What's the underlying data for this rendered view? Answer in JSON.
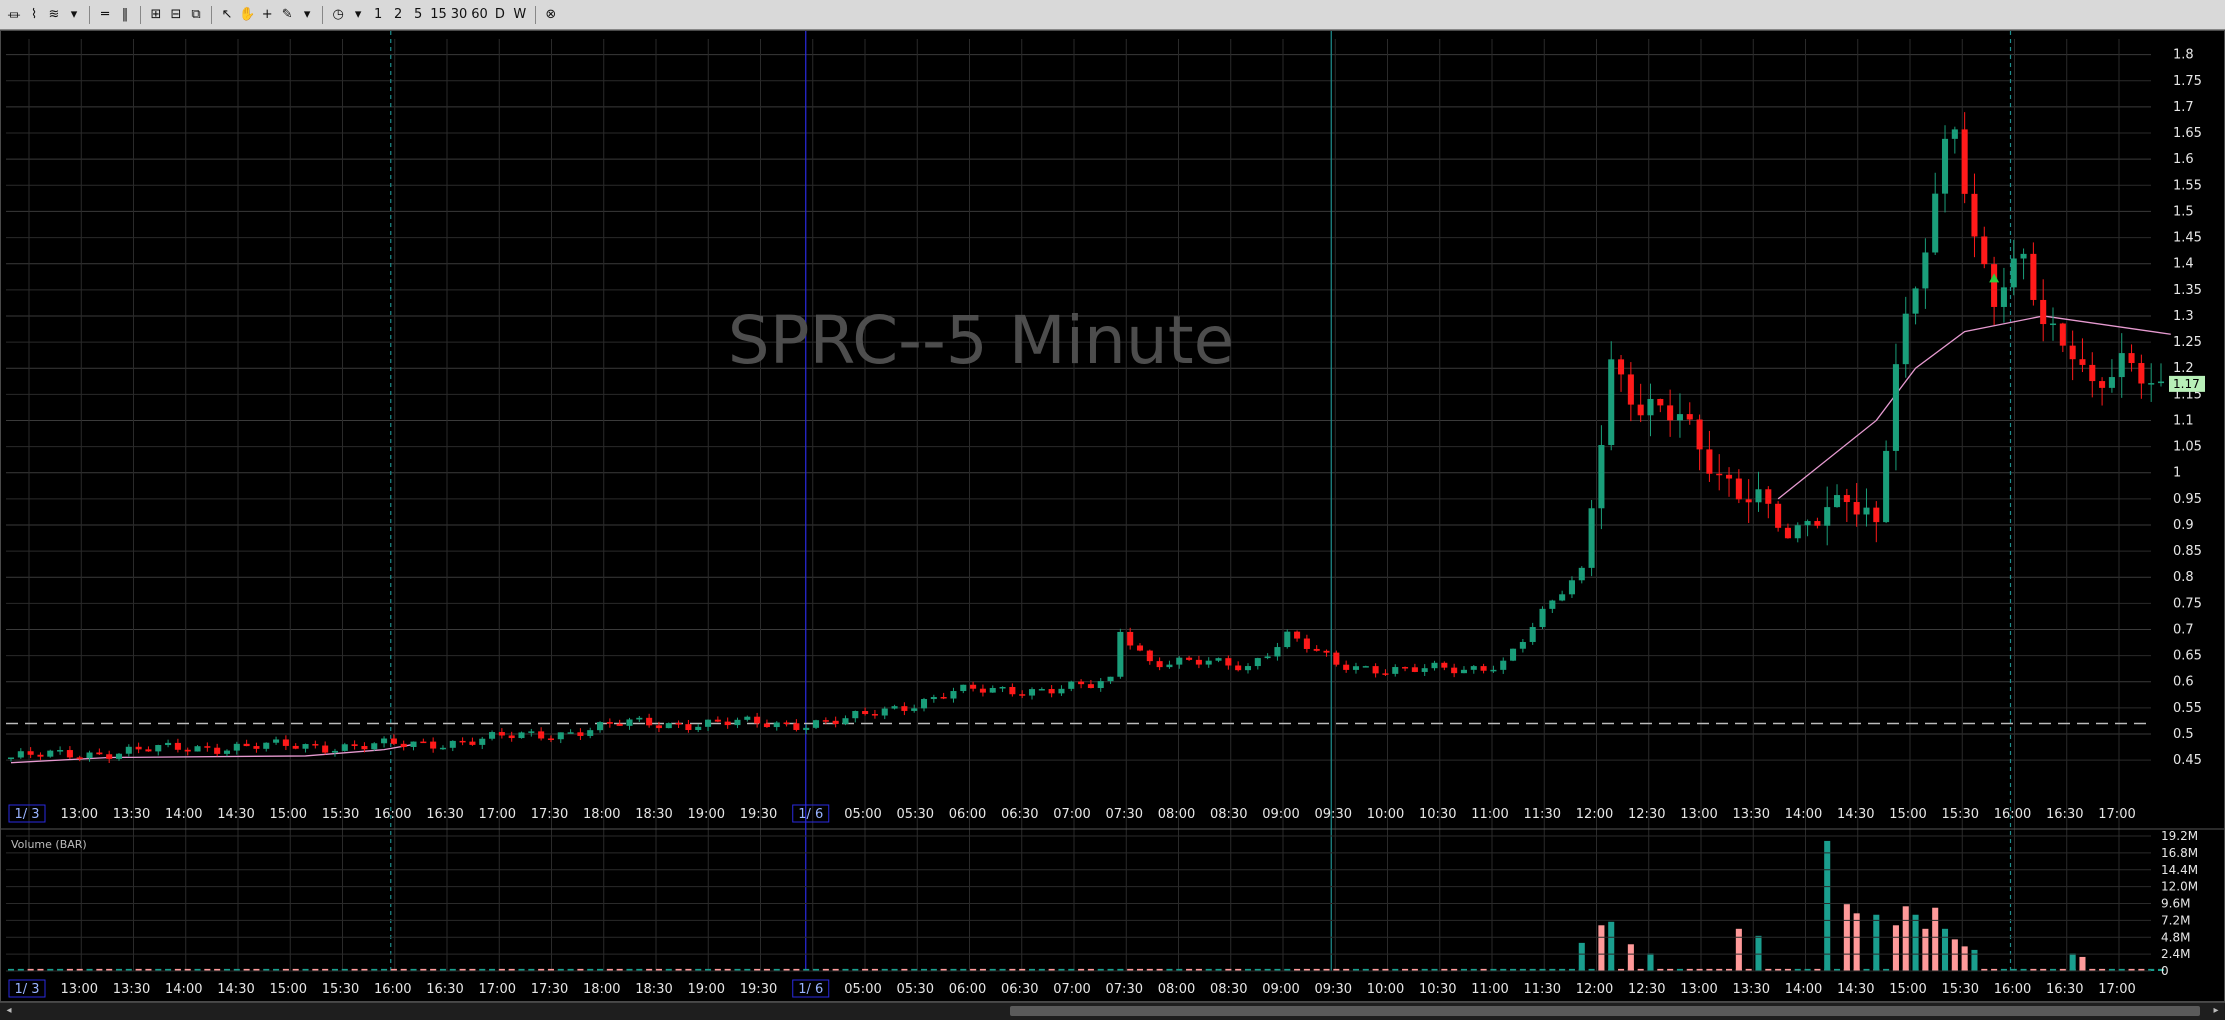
{
  "toolbar": {
    "buttons": [
      {
        "name": "chart-type-icon",
        "glyph": "⏛"
      },
      {
        "name": "draw-tools-icon",
        "glyph": "⌇"
      },
      {
        "name": "indicator-icon",
        "glyph": "≋"
      },
      {
        "name": "dropdown-arrow-icon",
        "glyph": "▾"
      },
      {
        "name": "sep"
      },
      {
        "name": "horizontal-lines-icon",
        "glyph": "═"
      },
      {
        "name": "vertical-lines-icon",
        "glyph": "‖"
      },
      {
        "name": "sep"
      },
      {
        "name": "layout-grid-icon",
        "glyph": "⊞"
      },
      {
        "name": "layout-split-icon",
        "glyph": "⊟"
      },
      {
        "name": "layout-cascade-icon",
        "glyph": "⧉"
      },
      {
        "name": "sep"
      },
      {
        "name": "cursor-icon",
        "glyph": "↖"
      },
      {
        "name": "hand-icon",
        "glyph": "✋"
      },
      {
        "name": "crosshair-icon",
        "glyph": "+"
      },
      {
        "name": "pencil-icon",
        "glyph": "✎"
      },
      {
        "name": "dropdown-arrow-icon",
        "glyph": "▾"
      },
      {
        "name": "sep"
      },
      {
        "name": "clock-icon",
        "glyph": "◷"
      },
      {
        "name": "dropdown-arrow-icon",
        "glyph": "▾"
      },
      {
        "name": "interval-1",
        "glyph": "1"
      },
      {
        "name": "interval-2",
        "glyph": "2"
      },
      {
        "name": "interval-5",
        "glyph": "5"
      },
      {
        "name": "interval-15",
        "glyph": "15"
      },
      {
        "name": "interval-30",
        "glyph": "30"
      },
      {
        "name": "interval-60",
        "glyph": "60"
      },
      {
        "name": "interval-daily",
        "glyph": "D"
      },
      {
        "name": "interval-weekly",
        "glyph": "W"
      },
      {
        "name": "sep"
      },
      {
        "name": "close-circle-icon",
        "glyph": "⊗"
      }
    ]
  },
  "colors": {
    "up": "#1a9e7a",
    "down": "#ff1a1a",
    "vwap": "#e69ad0",
    "grid": "#3a3a3a",
    "grid_minor": "#2a2a2a",
    "session": "#1f8f8f",
    "day_sep": "#2a2ae0",
    "dashed": "#bbbbbb",
    "vol_up": "#1a9e8e",
    "vol_down": "#ff9a9a",
    "last_bg": "#b8f0b8"
  },
  "chart_data": {
    "type": "candlestick",
    "watermark": "SPRC--5 Minute",
    "volume_label": "Volume (BAR)",
    "last_price_label": "1.17",
    "y_ticks": [
      "1.8",
      "1.75",
      "1.7",
      "1.65",
      "1.6",
      "1.55",
      "1.5",
      "1.45",
      "1.4",
      "1.35",
      "1.3",
      "1.25",
      "1.2",
      "1.15",
      "1.1",
      "1.05",
      "1",
      "0.95",
      "0.9",
      "0.85",
      "0.8",
      "0.75",
      "0.7",
      "0.65",
      "0.6",
      "0.55",
      "0.5",
      "0.45"
    ],
    "y_range": [
      0.41,
      1.83
    ],
    "volume_ticks": [
      "19.2M",
      "16.8M",
      "14.4M",
      "12.0M",
      "9.6M",
      "7.2M",
      "4.8M",
      "2.4M",
      "0"
    ],
    "volume_range": [
      0,
      19.2
    ],
    "reference_line": 0.52,
    "time_labels": [
      "1/ 3",
      "13:00",
      "13:30",
      "14:00",
      "14:30",
      "15:00",
      "15:30",
      "16:00",
      "16:30",
      "17:00",
      "17:30",
      "18:00",
      "18:30",
      "19:00",
      "19:30",
      "1/ 6",
      "05:00",
      "05:30",
      "06:00",
      "06:30",
      "07:00",
      "07:30",
      "08:00",
      "08:30",
      "09:00",
      "09:30",
      "10:00",
      "10:30",
      "11:00",
      "11:30",
      "12:00",
      "12:30",
      "13:00",
      "13:30",
      "14:00",
      "14:30",
      "15:00",
      "15:30",
      "16:00",
      "16:30",
      "17:00"
    ],
    "candle_count": 220,
    "anchors": [
      [
        0,
        0.455
      ],
      [
        20,
        0.475
      ],
      [
        40,
        0.478
      ],
      [
        55,
        0.5
      ],
      [
        63,
        0.52
      ],
      [
        80,
        0.52
      ],
      [
        85,
        0.525
      ],
      [
        96,
        0.58
      ],
      [
        110,
        0.59
      ],
      [
        112,
        0.6
      ],
      [
        113,
        0.7
      ],
      [
        116,
        0.64
      ],
      [
        126,
        0.63
      ],
      [
        130,
        0.69
      ],
      [
        135,
        0.63
      ],
      [
        148,
        0.62
      ],
      [
        152,
        0.64
      ],
      [
        158,
        0.77
      ],
      [
        160,
        0.81
      ],
      [
        163,
        1.22
      ],
      [
        166,
        1.12
      ],
      [
        170,
        1.1
      ],
      [
        174,
        1.0
      ],
      [
        178,
        0.95
      ],
      [
        181,
        0.87
      ],
      [
        187,
        0.97
      ],
      [
        190,
        0.9
      ],
      [
        192,
        1.2
      ],
      [
        194,
        1.34
      ],
      [
        197,
        1.63
      ],
      [
        198,
        1.68
      ],
      [
        200,
        1.45
      ],
      [
        202,
        1.33
      ],
      [
        205,
        1.4
      ],
      [
        207,
        1.28
      ],
      [
        210,
        1.25
      ],
      [
        212,
        1.17
      ],
      [
        215,
        1.2
      ],
      [
        220,
        1.14
      ]
    ],
    "vwap": [
      [
        0,
        0.445
      ],
      [
        10,
        0.455
      ],
      [
        30,
        0.458
      ],
      [
        38,
        0.47
      ],
      [
        41,
        0.48
      ],
      [
        180,
        0.95
      ],
      [
        190,
        1.1
      ],
      [
        194,
        1.2
      ],
      [
        199,
        1.27
      ],
      [
        207,
        1.3
      ],
      [
        220,
        1.265
      ]
    ],
    "markers": [
      {
        "index": 202,
        "price": 1.37,
        "type": "triangle-up"
      }
    ],
    "volume_spikes": [
      [
        160,
        4.0,
        "up"
      ],
      [
        162,
        6.5,
        "down"
      ],
      [
        163,
        7.0,
        "up"
      ],
      [
        165,
        3.8,
        "down"
      ],
      [
        167,
        2.5,
        "up"
      ],
      [
        176,
        6.0,
        "down"
      ],
      [
        178,
        5.0,
        "up"
      ],
      [
        185,
        18.5,
        "up"
      ],
      [
        187,
        9.5,
        "down"
      ],
      [
        188,
        8.2,
        "down"
      ],
      [
        190,
        8.0,
        "up"
      ],
      [
        192,
        6.5,
        "down"
      ],
      [
        193,
        9.2,
        "down"
      ],
      [
        194,
        8.0,
        "up"
      ],
      [
        195,
        6.0,
        "down"
      ],
      [
        196,
        9.0,
        "down"
      ],
      [
        197,
        6.0,
        "up"
      ],
      [
        198,
        4.5,
        "down"
      ],
      [
        199,
        3.5,
        "down"
      ],
      [
        200,
        3.0,
        "up"
      ],
      [
        210,
        2.5,
        "up"
      ],
      [
        211,
        2.0,
        "down"
      ]
    ]
  }
}
